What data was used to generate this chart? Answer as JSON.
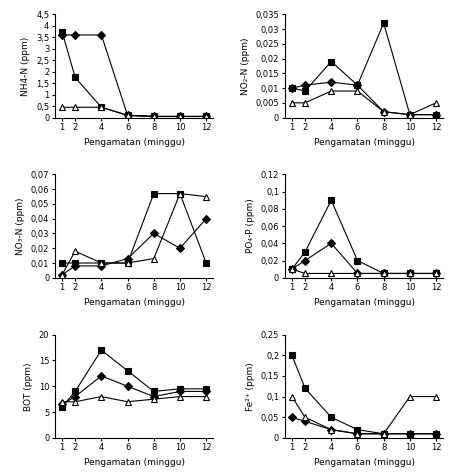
{
  "x": [
    1,
    2,
    4,
    6,
    8,
    10,
    12
  ],
  "nh4_n": {
    "series1": [
      3.75,
      1.75,
      0.45,
      0.1,
      0.05,
      0.05,
      0.05
    ],
    "series2": [
      3.6,
      3.6,
      3.6,
      0.1,
      0.05,
      0.05,
      0.05
    ],
    "series3": [
      0.45,
      0.45,
      0.45,
      0.1,
      0.05,
      0.05,
      0.05
    ],
    "ylabel": "NH4-N (ppm)",
    "ylim": [
      0,
      4.5
    ],
    "yticks": [
      0,
      0.5,
      1.0,
      1.5,
      2.0,
      2.5,
      3.0,
      3.5,
      4.0,
      4.5
    ]
  },
  "no2_n_top": {
    "series1": [
      0.01,
      0.009,
      0.019,
      0.011,
      0.032,
      0.001,
      0.001
    ],
    "series2": [
      0.01,
      0.011,
      0.012,
      0.011,
      0.002,
      0.001,
      0.001
    ],
    "series3": [
      0.005,
      0.005,
      0.009,
      0.009,
      0.002,
      0.001,
      0.005
    ],
    "ylabel": "NO₂-N (ppm)",
    "ylim": [
      0,
      0.035
    ],
    "yticks": [
      0,
      0.005,
      0.01,
      0.015,
      0.02,
      0.025,
      0.03,
      0.035
    ]
  },
  "no3_n": {
    "series1": [
      0.01,
      0.01,
      0.01,
      0.01,
      0.057,
      0.057,
      0.01
    ],
    "series2": [
      0.002,
      0.008,
      0.008,
      0.013,
      0.03,
      0.02,
      0.04
    ],
    "series3": [
      0.002,
      0.018,
      0.01,
      0.01,
      0.013,
      0.057,
      0.055
    ],
    "ylabel": "NO₃-N (ppm)",
    "ylim": [
      0,
      0.07
    ],
    "yticks": [
      0,
      0.01,
      0.02,
      0.03,
      0.04,
      0.05,
      0.06,
      0.07
    ]
  },
  "po4_p": {
    "series1": [
      0.01,
      0.03,
      0.09,
      0.02,
      0.005,
      0.005,
      0.005
    ],
    "series2": [
      0.01,
      0.02,
      0.04,
      0.005,
      0.005,
      0.005,
      0.005
    ],
    "series3": [
      0.01,
      0.005,
      0.005,
      0.005,
      0.005,
      0.005,
      0.005
    ],
    "ylabel": "PO₄-P (ppm)",
    "ylim": [
      0,
      0.12
    ],
    "yticks": [
      0,
      0.02,
      0.04,
      0.06,
      0.08,
      0.1,
      0.12
    ]
  },
  "bot": {
    "series1": [
      6.0,
      9.0,
      17.0,
      13.0,
      9.0,
      9.5,
      9.5
    ],
    "series2": [
      6.5,
      8.0,
      12.0,
      10.0,
      8.0,
      9.0,
      9.0
    ],
    "series3": [
      7.0,
      7.0,
      8.0,
      7.0,
      7.5,
      8.0,
      8.0
    ],
    "ylabel": "BOT (ppm)",
    "ylim": [
      0,
      20
    ],
    "yticks": [
      0,
      5,
      10,
      15,
      20
    ]
  },
  "fe2": {
    "series1": [
      0.2,
      0.12,
      0.05,
      0.02,
      0.01,
      0.01,
      0.01
    ],
    "series2": [
      0.05,
      0.04,
      0.02,
      0.01,
      0.01,
      0.01,
      0.01
    ],
    "series3": [
      0.1,
      0.05,
      0.02,
      0.01,
      0.01,
      0.1,
      0.1
    ],
    "ylabel": "Fe²⁺ (ppm)",
    "ylim": [
      0,
      0.25
    ],
    "yticks": [
      0,
      0.05,
      0.1,
      0.15,
      0.2,
      0.25
    ]
  },
  "xlabel": "Pengamatan (minggu)",
  "markers": [
    "s",
    "D",
    "^"
  ],
  "colors": [
    "black",
    "black",
    "black"
  ],
  "linestyles": [
    "-",
    "-",
    "-"
  ],
  "fillstyles": [
    "full",
    "full",
    "none"
  ]
}
